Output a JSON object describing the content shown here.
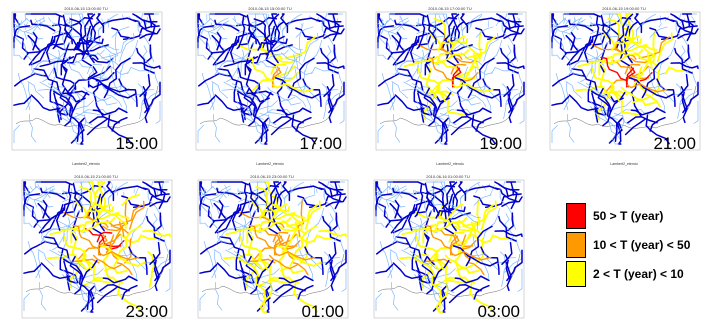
{
  "panels": [
    {
      "title": "2010-06-15 13:00:00 TU",
      "time": "15:00",
      "xlabel": "Lambert2_etendu",
      "ylabel": "Lambert2_etendu",
      "stage": 0
    },
    {
      "title": "2010-06-15 15:00:00 TU",
      "time": "17:00",
      "xlabel": "Lambert2_etendu",
      "ylabel": "Lambert2_etendu",
      "stage": 1
    },
    {
      "title": "2010-06-15 17:00:00 TU",
      "time": "19:00",
      "xlabel": "Lambert2_etendu",
      "ylabel": "Lambert2_etendu",
      "stage": 2
    },
    {
      "title": "2010-06-15 19:00:00 TU",
      "time": "21:00",
      "xlabel": "Lambert2_etendu",
      "ylabel": "Lambert2_etendu",
      "stage": 3
    },
    {
      "title": "2010-06-15 21:00:00 TU",
      "time": "23:00",
      "xlabel": "Lambert2_etendu",
      "ylabel": "Lambert2_etendu",
      "stage": 4
    },
    {
      "title": "2010-06-15 23:00:00 TU",
      "time": "01:00",
      "xlabel": "Lambert2_etendu",
      "ylabel": "Lambert2_etendu",
      "stage": 5
    },
    {
      "title": "2010-06-16 01:00:00 TU",
      "time": "03:00",
      "xlabel": "Lambert2_etendu",
      "ylabel": "Lambert2_etendu",
      "stage": 6
    }
  ],
  "legend": [
    {
      "label": "50 > T (year)",
      "color": "#ff0000"
    },
    {
      "label": "10 < T (year) < 50",
      "color": "#ff9900"
    },
    {
      "label": "2 < T (year) < 10",
      "color": "#ffff00"
    }
  ],
  "colors": {
    "river_main": "#0000cc",
    "river_minor": "#7fb8ff",
    "coast": "#666666"
  }
}
